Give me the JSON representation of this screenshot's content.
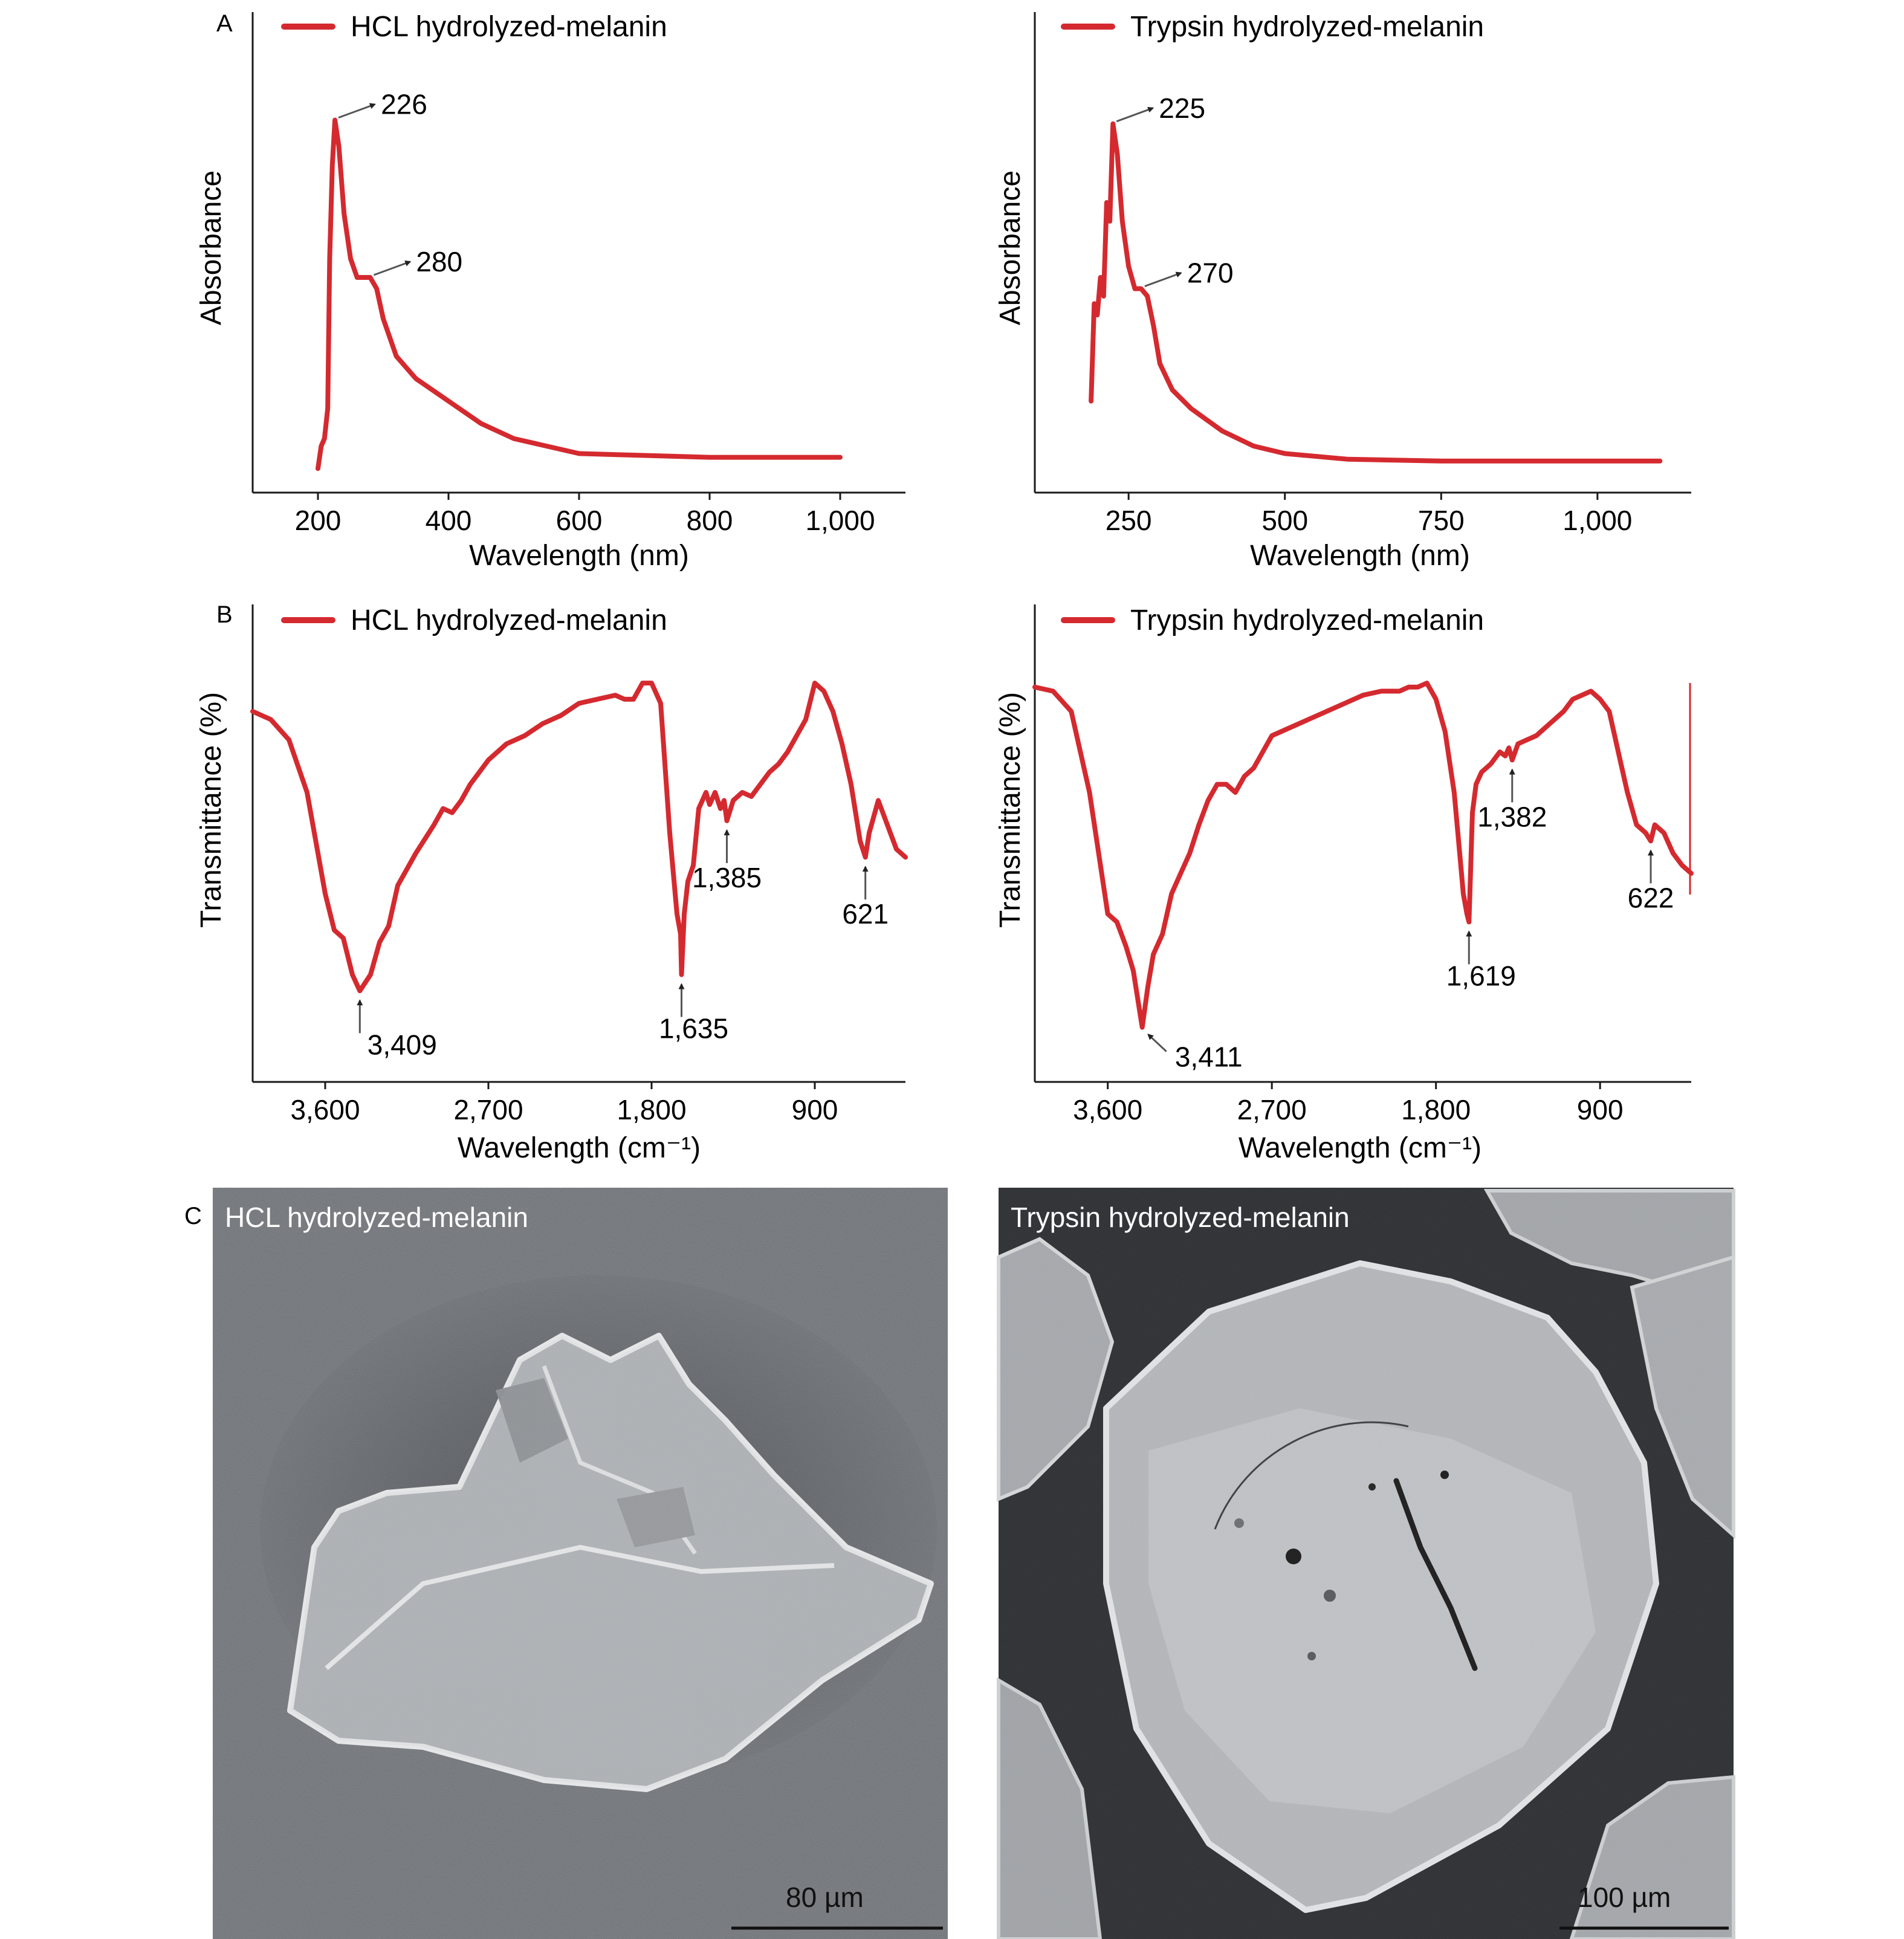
{
  "panels": {
    "A": "A",
    "B": "B",
    "C": "C"
  },
  "colors": {
    "series": "#d42a2f",
    "axis": "#1a1a1a",
    "sem_background": "#6b6f74"
  },
  "chart_data": [
    {
      "id": "uv-hcl",
      "type": "line",
      "panel": "A",
      "legend": "HCL hydrolyzed-melanin",
      "xlabel": "Wavelength (nm)",
      "ylabel": "Absorbance",
      "xlim": [
        100,
        1100
      ],
      "ylim": [
        0,
        1
      ],
      "x_ticks": [
        200,
        400,
        600,
        800,
        1000
      ],
      "x_tick_labels": [
        "200",
        "400",
        "600",
        "800",
        "1,000"
      ],
      "y_ticks_shown": false,
      "series": [
        {
          "name": "HCL hydrolyzed-melanin",
          "x": [
            200,
            205,
            210,
            215,
            218,
            222,
            226,
            232,
            240,
            250,
            260,
            270,
            280,
            290,
            300,
            320,
            350,
            400,
            450,
            500,
            600,
            700,
            800,
            900,
            1000
          ],
          "y": [
            0.04,
            0.1,
            0.12,
            0.2,
            0.6,
            0.85,
            0.97,
            0.9,
            0.72,
            0.6,
            0.55,
            0.55,
            0.55,
            0.52,
            0.44,
            0.34,
            0.28,
            0.22,
            0.16,
            0.12,
            0.08,
            0.075,
            0.07,
            0.07,
            0.07
          ]
        }
      ],
      "annotations": [
        {
          "x": 226,
          "y": 0.97,
          "label": "226"
        },
        {
          "x": 280,
          "y": 0.55,
          "label": "280"
        }
      ]
    },
    {
      "id": "uv-trypsin",
      "type": "line",
      "panel": "A",
      "legend": "Trypsin hydrolyzed-melanin",
      "xlabel": "Wavelength (nm)",
      "ylabel": "Absorbance",
      "xlim": [
        100,
        1150
      ],
      "ylim": [
        0,
        1
      ],
      "x_ticks": [
        250,
        500,
        750,
        1000
      ],
      "x_tick_labels": [
        "250",
        "500",
        "750",
        "1,000"
      ],
      "y_ticks_shown": false,
      "series": [
        {
          "name": "Trypsin hydrolyzed-melanin",
          "x": [
            190,
            195,
            200,
            205,
            210,
            215,
            220,
            225,
            232,
            240,
            250,
            260,
            270,
            280,
            290,
            300,
            320,
            350,
            400,
            450,
            500,
            600,
            750,
            900,
            1100
          ],
          "y": [
            0.22,
            0.48,
            0.45,
            0.55,
            0.5,
            0.75,
            0.7,
            0.96,
            0.88,
            0.7,
            0.58,
            0.52,
            0.52,
            0.5,
            0.42,
            0.32,
            0.25,
            0.2,
            0.14,
            0.1,
            0.08,
            0.065,
            0.06,
            0.06,
            0.06
          ]
        }
      ],
      "annotations": [
        {
          "x": 225,
          "y": 0.96,
          "label": "225"
        },
        {
          "x": 270,
          "y": 0.52,
          "label": "270"
        }
      ]
    },
    {
      "id": "ftir-hcl",
      "type": "line",
      "panel": "B",
      "legend": "HCL hydrolyzed-melanin",
      "xlabel": "Wavelength (cm⁻¹)",
      "ylabel": "Transmittance (%)",
      "x_reversed": true,
      "xlim": [
        4000,
        400
      ],
      "ylim": [
        0,
        1
      ],
      "x_ticks": [
        3600,
        2700,
        1800,
        900
      ],
      "x_tick_labels": [
        "3,600",
        "2,700",
        "1,800",
        "900"
      ],
      "y_ticks_shown": false,
      "series": [
        {
          "name": "HCL hydrolyzed-melanin",
          "x": [
            4000,
            3900,
            3800,
            3700,
            3600,
            3550,
            3500,
            3450,
            3409,
            3350,
            3300,
            3250,
            3200,
            3100,
            3000,
            2950,
            2900,
            2850,
            2800,
            2700,
            2600,
            2500,
            2400,
            2300,
            2200,
            2100,
            2000,
            1950,
            1900,
            1850,
            1800,
            1750,
            1700,
            1680,
            1660,
            1640,
            1635,
            1620,
            1600,
            1570,
            1540,
            1500,
            1480,
            1450,
            1420,
            1400,
            1385,
            1350,
            1300,
            1250,
            1200,
            1150,
            1100,
            1050,
            1000,
            950,
            900,
            850,
            800,
            750,
            700,
            650,
            621,
            600,
            550,
            500,
            450,
            400
          ],
          "y": [
            0.9,
            0.88,
            0.83,
            0.7,
            0.45,
            0.36,
            0.34,
            0.25,
            0.21,
            0.25,
            0.33,
            0.37,
            0.47,
            0.55,
            0.62,
            0.66,
            0.65,
            0.68,
            0.72,
            0.78,
            0.82,
            0.84,
            0.87,
            0.89,
            0.92,
            0.93,
            0.94,
            0.93,
            0.93,
            0.97,
            0.97,
            0.92,
            0.6,
            0.5,
            0.4,
            0.35,
            0.25,
            0.4,
            0.48,
            0.52,
            0.66,
            0.7,
            0.67,
            0.7,
            0.66,
            0.68,
            0.63,
            0.68,
            0.7,
            0.69,
            0.72,
            0.75,
            0.77,
            0.8,
            0.84,
            0.88,
            0.97,
            0.95,
            0.9,
            0.82,
            0.72,
            0.58,
            0.54,
            0.6,
            0.68,
            0.62,
            0.56,
            0.54
          ]
        }
      ],
      "annotations": [
        {
          "x": 3409,
          "y": 0.21,
          "label": "3,409"
        },
        {
          "x": 1635,
          "y": 0.25,
          "label": "1,635"
        },
        {
          "x": 1385,
          "y": 0.63,
          "label": "1,385"
        },
        {
          "x": 621,
          "y": 0.54,
          "label": "621"
        }
      ]
    },
    {
      "id": "ftir-trypsin",
      "type": "line",
      "panel": "B",
      "legend": "Trypsin hydrolyzed-melanin",
      "xlabel": "Wavelength (cm⁻¹)",
      "ylabel": "Transmittance (%)",
      "x_reversed": true,
      "xlim": [
        4000,
        400
      ],
      "ylim": [
        0,
        1
      ],
      "x_ticks": [
        3600,
        2700,
        1800,
        900
      ],
      "x_tick_labels": [
        "3,600",
        "2,700",
        "1,800",
        "900"
      ],
      "y_ticks_shown": false,
      "series": [
        {
          "name": "Trypsin hydrolyzed-melanin",
          "x": [
            4000,
            3900,
            3800,
            3700,
            3600,
            3550,
            3500,
            3460,
            3411,
            3380,
            3350,
            3300,
            3250,
            3200,
            3150,
            3100,
            3050,
            3000,
            2950,
            2900,
            2850,
            2800,
            2700,
            2600,
            2500,
            2400,
            2300,
            2200,
            2100,
            2000,
            1950,
            1900,
            1850,
            1800,
            1750,
            1700,
            1680,
            1650,
            1630,
            1619,
            1600,
            1580,
            1550,
            1500,
            1450,
            1420,
            1400,
            1382,
            1350,
            1300,
            1250,
            1200,
            1150,
            1100,
            1050,
            1000,
            950,
            900,
            850,
            800,
            750,
            700,
            650,
            622,
            600,
            550,
            500,
            450,
            400
          ],
          "y": [
            0.96,
            0.95,
            0.9,
            0.7,
            0.4,
            0.38,
            0.32,
            0.26,
            0.12,
            0.22,
            0.3,
            0.35,
            0.45,
            0.5,
            0.55,
            0.62,
            0.68,
            0.72,
            0.72,
            0.7,
            0.74,
            0.76,
            0.84,
            0.86,
            0.88,
            0.9,
            0.92,
            0.94,
            0.95,
            0.95,
            0.96,
            0.96,
            0.97,
            0.93,
            0.85,
            0.7,
            0.6,
            0.45,
            0.4,
            0.38,
            0.65,
            0.72,
            0.75,
            0.77,
            0.8,
            0.79,
            0.81,
            0.78,
            0.82,
            0.83,
            0.84,
            0.86,
            0.88,
            0.9,
            0.93,
            0.94,
            0.95,
            0.93,
            0.9,
            0.8,
            0.7,
            0.62,
            0.6,
            0.58,
            0.62,
            0.6,
            0.55,
            0.52,
            0.5
          ]
        }
      ],
      "annotations": [
        {
          "x": 3411,
          "y": 0.12,
          "label": "3,411"
        },
        {
          "x": 1619,
          "y": 0.38,
          "label": "1,619"
        },
        {
          "x": 1382,
          "y": 0.78,
          "label": "1,382"
        },
        {
          "x": 622,
          "y": 0.58,
          "label": "622"
        }
      ]
    }
  ],
  "sem": [
    {
      "id": "sem-hcl",
      "label": "HCL hydrolyzed-melanin",
      "scale_bar": "80 µm"
    },
    {
      "id": "sem-trypsin",
      "label": "Trypsin hydrolyzed-melanin",
      "scale_bar": "100 µm"
    }
  ]
}
